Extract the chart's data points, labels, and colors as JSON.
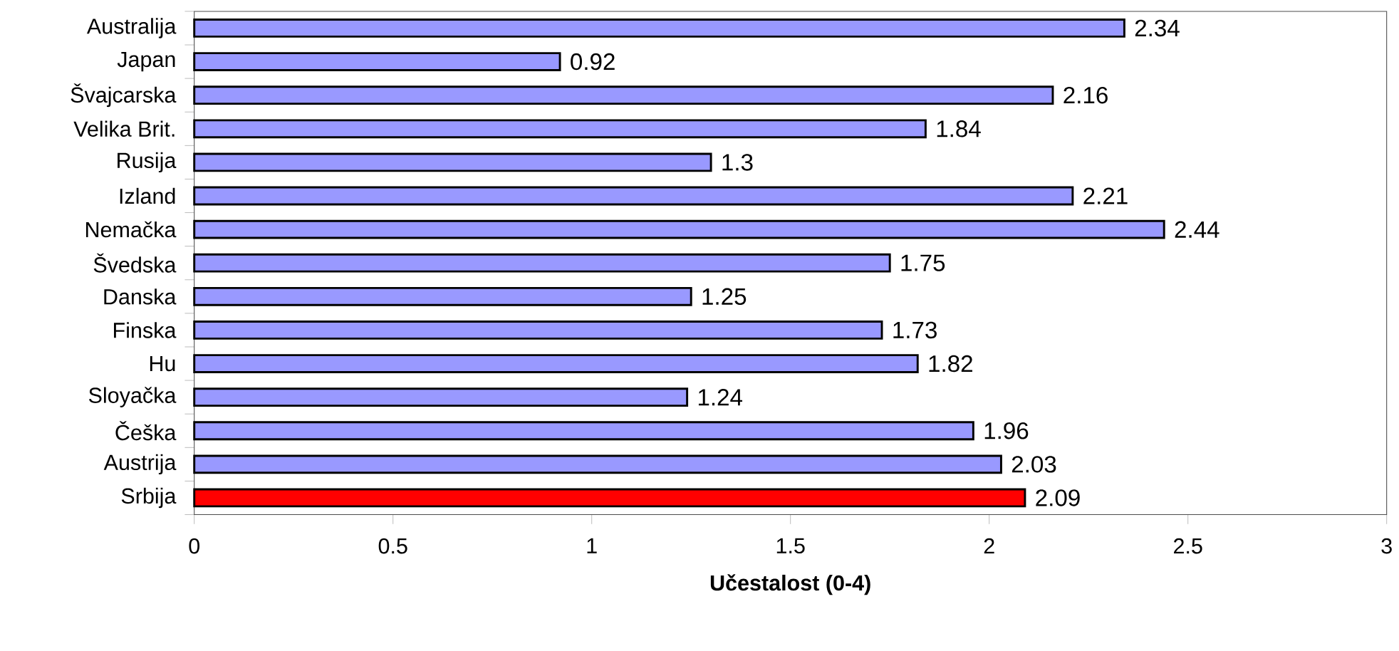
{
  "chart_data": {
    "type": "bar",
    "orientation": "horizontal",
    "xlabel": "Učestalost (0-4)",
    "categories": [
      "Australija",
      "Japan",
      "Švajcarska",
      "Velika Brit.",
      "Rusija",
      "Izland",
      "Nemačka",
      "Švedska",
      "Danska",
      "Finska",
      "Hu",
      "Sloyačka",
      "Češka",
      "Austrija",
      "Srbija"
    ],
    "values": [
      2.34,
      0.92,
      2.16,
      1.84,
      1.3,
      2.21,
      2.44,
      1.75,
      1.25,
      1.73,
      1.82,
      1.24,
      1.96,
      2.03,
      2.09
    ],
    "colors": [
      "#9999ff",
      "#9999ff",
      "#9999ff",
      "#9999ff",
      "#9999ff",
      "#9999ff",
      "#9999ff",
      "#9999ff",
      "#9999ff",
      "#9999ff",
      "#9999ff",
      "#9999ff",
      "#9999ff",
      "#9999ff",
      "#ff0000"
    ],
    "xlim": [
      0,
      3
    ],
    "xticks": [
      0,
      0.5,
      1,
      1.5,
      2,
      2.5,
      3
    ],
    "data_labels": true,
    "grid": false
  }
}
